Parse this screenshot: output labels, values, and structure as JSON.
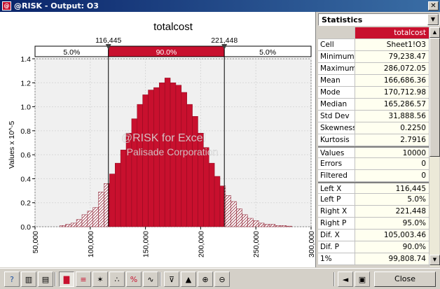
{
  "window": {
    "title": "@RISK - Output: O3",
    "app_icon_glyph": "@"
  },
  "chart_data": {
    "type": "bar",
    "title": "totalcost",
    "ylabel": "Values x 10^-5",
    "xlim": [
      50000,
      300000
    ],
    "ylim": [
      0,
      1.4
    ],
    "x_ticks": [
      "50,000",
      "100,000",
      "150,000",
      "200,000",
      "250,000",
      "300,000"
    ],
    "y_ticks": [
      "0.0",
      "0.2",
      "0.4",
      "0.6",
      "0.8",
      "1.0",
      "1.2",
      "1.4"
    ],
    "bin_width": 5000,
    "bins_start": [
      72500,
      77500,
      82500,
      87500,
      92500,
      97500,
      102500,
      107500,
      112500,
      117500,
      122500,
      127500,
      132500,
      137500,
      142500,
      147500,
      152500,
      157500,
      162500,
      167500,
      172500,
      177500,
      182500,
      187500,
      192500,
      197500,
      202500,
      207500,
      212500,
      217500,
      222500,
      227500,
      232500,
      237500,
      242500,
      247500,
      252500,
      257500,
      262500,
      267500,
      272500,
      277500
    ],
    "values": [
      0.01,
      0.02,
      0.03,
      0.06,
      0.1,
      0.13,
      0.16,
      0.29,
      0.36,
      0.44,
      0.53,
      0.64,
      0.78,
      0.9,
      1.02,
      1.1,
      1.14,
      1.16,
      1.2,
      1.24,
      1.2,
      1.18,
      1.12,
      1.02,
      0.92,
      0.78,
      0.66,
      0.53,
      0.42,
      0.34,
      0.26,
      0.21,
      0.15,
      0.1,
      0.07,
      0.05,
      0.03,
      0.02,
      0.02,
      0.01,
      0.01,
      0.005
    ],
    "left_x": 116445,
    "right_x": 221448,
    "left_x_label": "116,445",
    "right_x_label": "221,448",
    "left_pct": "5.0%",
    "mid_pct": "90.0%",
    "right_pct": "5.0%",
    "bar_color": "#c8102e",
    "tail_color": "#8b1a2c",
    "watermark_1": "@RISK for Excel",
    "watermark_2": "Palisade Corporation"
  },
  "stats": {
    "header": "Statistics",
    "column_header": "totalcost",
    "rows": [
      {
        "name": "Cell",
        "value": "Sheet1!O3"
      },
      {
        "name": "Minimum",
        "value": "79,238.47"
      },
      {
        "name": "Maximum",
        "value": "286,072.05"
      },
      {
        "name": "Mean",
        "value": "166,686.36"
      },
      {
        "name": "Mode",
        "value": "170,712.98"
      },
      {
        "name": "Median",
        "value": "165,286.57"
      },
      {
        "name": "Std Dev",
        "value": "31,888.56"
      },
      {
        "name": "Skewness",
        "value": "0.2250"
      },
      {
        "name": "Kurtosis",
        "value": "2.7916"
      },
      {
        "name": "Values",
        "value": "10000"
      },
      {
        "name": "Errors",
        "value": "0"
      },
      {
        "name": "Filtered",
        "value": "0"
      },
      {
        "name": "Left X",
        "value": "116,445"
      },
      {
        "name": "Left P",
        "value": "5.0%"
      },
      {
        "name": "Right X",
        "value": "221,448"
      },
      {
        "name": "Right P",
        "value": "95.0%"
      },
      {
        "name": "Dif. X",
        "value": "105,003.46"
      },
      {
        "name": "Dif. P",
        "value": "90.0%"
      },
      {
        "name": "1%",
        "value": "99,808.74"
      }
    ]
  },
  "toolbar": {
    "close_label": "Close",
    "icons": [
      "help-icon",
      "summary-icon",
      "data-icon",
      "histogram-icon",
      "tornado-icon",
      "spider-icon",
      "scatter-icon",
      "percent-icon",
      "fit-icon",
      "filter-icon",
      "overlay-icon",
      "zoom-in-icon",
      "zoom-out-icon",
      "prev-icon",
      "graph-window-icon",
      "next-icon"
    ]
  }
}
